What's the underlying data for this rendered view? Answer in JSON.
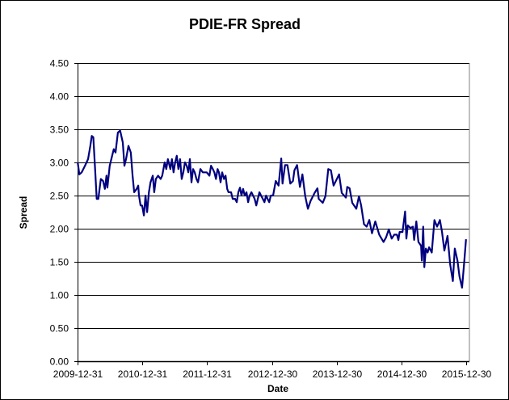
{
  "chart_data": {
    "type": "line",
    "title": "PDIE-FR Spread",
    "xlabel": "Date",
    "ylabel": "Spread",
    "ylim": [
      0,
      4.5
    ],
    "yticks": [
      "0.00",
      "0.50",
      "1.00",
      "1.50",
      "2.00",
      "2.50",
      "3.00",
      "3.50",
      "4.00",
      "4.50"
    ],
    "xlim": [
      "2009-12-31",
      "2015-12-30"
    ],
    "xticks": [
      "2009-12-31",
      "2010-12-31",
      "2011-12-31",
      "2012-12-30",
      "2013-12-30",
      "2014-12-30",
      "2015-12-30"
    ],
    "grid": "horizontal",
    "legend": "none",
    "line_color": "#000080",
    "series": [
      {
        "x": [
          "2010-01-01",
          "2010-01-10",
          "2010-01-23",
          "2010-02-11",
          "2010-02-28",
          "2010-03-13",
          "2010-03-21",
          "2010-03-30",
          "2010-04-09",
          "2010-04-18",
          "2010-04-27",
          "2010-05-11",
          "2010-05-24",
          "2010-06-03",
          "2010-06-12",
          "2010-06-17",
          "2010-06-30",
          "2010-07-14",
          "2010-07-23",
          "2010-08-02",
          "2010-08-15",
          "2010-08-28",
          "2010-09-12",
          "2010-09-21",
          "2010-09-30",
          "2010-10-14",
          "2010-10-27",
          "2010-11-06",
          "2010-11-15",
          "2010-11-29",
          "2010-12-08",
          "2010-12-12",
          "2010-12-21",
          "2010-12-30",
          "2011-01-09",
          "2011-01-18",
          "2011-01-27",
          "2011-02-06",
          "2011-02-15",
          "2011-02-28",
          "2011-03-08",
          "2011-03-17",
          "2011-03-30",
          "2011-04-13",
          "2011-04-22",
          "2011-05-06",
          "2011-05-15",
          "2011-05-24",
          "2011-06-07",
          "2011-06-16",
          "2011-06-25",
          "2011-07-04",
          "2011-07-13",
          "2011-07-22",
          "2011-08-01",
          "2011-08-10",
          "2011-08-19",
          "2011-08-28",
          "2011-09-07",
          "2011-09-16",
          "2011-09-25",
          "2011-10-04",
          "2011-10-13",
          "2011-10-22",
          "2011-11-01",
          "2011-11-10",
          "2011-11-23",
          "2011-12-07",
          "2011-12-29",
          "2012-01-13",
          "2012-01-22",
          "2012-02-01",
          "2012-02-10",
          "2012-02-19",
          "2012-02-28",
          "2012-03-07",
          "2012-03-16",
          "2012-03-25",
          "2012-04-04",
          "2012-04-13",
          "2012-04-22",
          "2012-04-30",
          "2012-05-14",
          "2012-05-23",
          "2012-06-06",
          "2012-06-15",
          "2012-06-24",
          "2012-07-03",
          "2012-07-12",
          "2012-07-21",
          "2012-07-30",
          "2012-08-09",
          "2012-08-18",
          "2012-08-27",
          "2012-09-06",
          "2012-09-15",
          "2012-09-24",
          "2012-10-03",
          "2012-10-12",
          "2012-10-21",
          "2012-10-30",
          "2012-11-09",
          "2012-11-18",
          "2012-11-27",
          "2012-12-06",
          "2012-12-15",
          "2012-12-24",
          "2013-01-06",
          "2013-01-21",
          "2013-02-06",
          "2013-02-21",
          "2013-02-28",
          "2013-03-14",
          "2013-03-28",
          "2013-04-13",
          "2013-04-28",
          "2013-05-06",
          "2013-05-21",
          "2013-06-06",
          "2013-06-20",
          "2013-07-06",
          "2013-07-21",
          "2013-08-05",
          "2013-08-28",
          "2013-09-13",
          "2013-09-20",
          "2013-10-13",
          "2013-10-28",
          "2013-11-13",
          "2013-11-28",
          "2013-12-13",
          "2014-01-13",
          "2014-01-28",
          "2014-02-20",
          "2014-02-28",
          "2014-03-13",
          "2014-03-28",
          "2014-04-20",
          "2014-05-05",
          "2014-05-17",
          "2014-06-02",
          "2014-06-17",
          "2014-07-02",
          "2014-07-17",
          "2014-08-05",
          "2014-08-27",
          "2014-09-20",
          "2014-10-05",
          "2014-10-20",
          "2014-11-05",
          "2014-11-20",
          "2014-12-05",
          "2014-12-13",
          "2014-12-20",
          "2015-01-05",
          "2015-01-20",
          "2015-01-27",
          "2015-02-04",
          "2015-02-19",
          "2015-03-05",
          "2015-03-12",
          "2015-03-24",
          "2015-04-05",
          "2015-04-20",
          "2015-04-24",
          "2015-05-02",
          "2015-05-08",
          "2015-05-17",
          "2015-05-27",
          "2015-06-04",
          "2015-06-19",
          "2015-07-04",
          "2015-07-19",
          "2015-08-04",
          "2015-08-16",
          "2015-08-29",
          "2015-09-16",
          "2015-10-01",
          "2015-10-16",
          "2015-10-27",
          "2015-11-11",
          "2015-11-22",
          "2015-12-07",
          "2015-12-19",
          "2015-12-29"
        ],
        "y": [
          3.0,
          2.82,
          2.85,
          2.95,
          3.05,
          3.25,
          3.4,
          3.38,
          2.9,
          2.45,
          2.45,
          2.75,
          2.72,
          2.6,
          2.8,
          2.62,
          2.95,
          3.1,
          3.2,
          3.15,
          3.45,
          3.48,
          3.3,
          2.95,
          3.05,
          3.25,
          3.15,
          2.8,
          2.55,
          2.6,
          2.65,
          2.5,
          2.35,
          2.35,
          2.2,
          2.5,
          2.25,
          2.55,
          2.7,
          2.8,
          2.55,
          2.75,
          2.8,
          2.75,
          2.8,
          3.0,
          2.9,
          3.05,
          2.9,
          3.05,
          2.85,
          3.0,
          3.1,
          2.9,
          3.05,
          2.75,
          2.85,
          3.0,
          2.95,
          2.85,
          3.05,
          2.7,
          2.9,
          2.85,
          2.75,
          2.7,
          2.9,
          2.85,
          2.85,
          2.8,
          2.95,
          2.9,
          2.85,
          2.75,
          2.9,
          2.85,
          2.7,
          2.85,
          2.75,
          2.8,
          2.6,
          2.55,
          2.55,
          2.45,
          2.45,
          2.4,
          2.55,
          2.62,
          2.5,
          2.6,
          2.5,
          2.55,
          2.4,
          2.5,
          2.55,
          2.5,
          2.45,
          2.35,
          2.45,
          2.55,
          2.5,
          2.45,
          2.4,
          2.5,
          2.45,
          2.4,
          2.5,
          2.5,
          2.72,
          2.65,
          3.06,
          2.68,
          2.96,
          2.96,
          2.68,
          2.72,
          2.88,
          2.96,
          2.63,
          2.82,
          2.49,
          2.3,
          2.42,
          2.54,
          2.61,
          2.45,
          2.39,
          2.49,
          2.9,
          2.88,
          2.65,
          2.82,
          2.54,
          2.47,
          2.63,
          2.61,
          2.39,
          2.3,
          2.49,
          2.35,
          2.07,
          2.03,
          2.13,
          1.93,
          2.11,
          1.91,
          1.8,
          1.87,
          1.99,
          1.85,
          1.91,
          1.91,
          1.83,
          1.95,
          1.95,
          2.26,
          1.85,
          2.05,
          2.01,
          2.03,
          1.83,
          2.11,
          1.8,
          1.74,
          1.52,
          2.03,
          1.42,
          1.7,
          1.64,
          1.72,
          1.64,
          2.13,
          2.03,
          2.13,
          1.95,
          1.67,
          1.89,
          1.46,
          1.21,
          1.7,
          1.52,
          1.28,
          1.11,
          1.5,
          1.84
        ]
      }
    ]
  }
}
